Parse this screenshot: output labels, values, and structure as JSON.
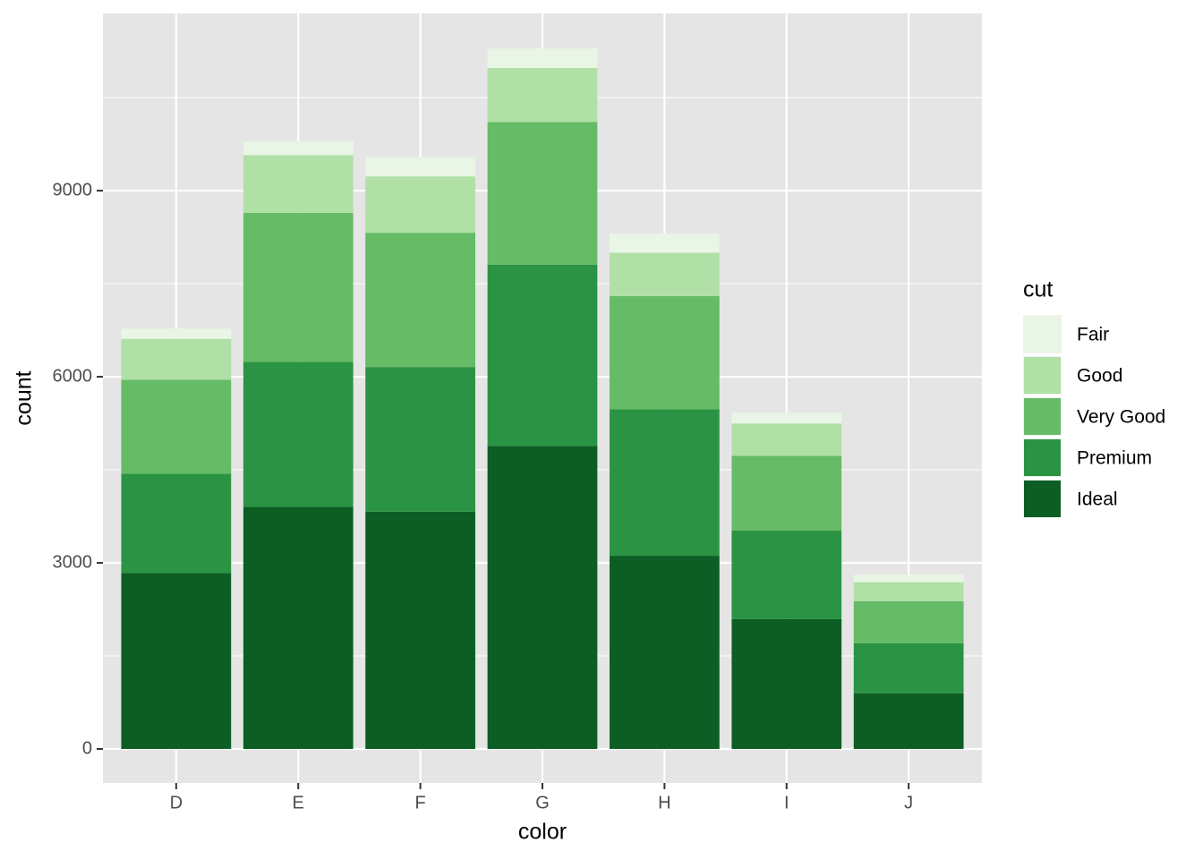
{
  "chart_data": {
    "type": "bar",
    "stacked": true,
    "x_label": "color",
    "y_label": "count",
    "legend_title": "cut",
    "categories": [
      "D",
      "E",
      "F",
      "G",
      "H",
      "I",
      "J"
    ],
    "series": [
      {
        "name": "Fair",
        "color": "#e9f6e5",
        "values": [
          163,
          224,
          312,
          314,
          303,
          175,
          119
        ]
      },
      {
        "name": "Good",
        "color": "#b0e0a6",
        "values": [
          662,
          933,
          909,
          871,
          702,
          522,
          307
        ]
      },
      {
        "name": "Very Good",
        "color": "#66bb66",
        "values": [
          1513,
          2400,
          2164,
          2299,
          1824,
          1204,
          678
        ]
      },
      {
        "name": "Premium",
        "color": "#2b9444",
        "values": [
          1603,
          2337,
          2331,
          2924,
          2360,
          1428,
          808
        ]
      },
      {
        "name": "Ideal",
        "color": "#0c5e25",
        "values": [
          2834,
          3903,
          3826,
          4884,
          3115,
          2093,
          896
        ]
      }
    ],
    "ylim": [
      -548,
      11857
    ],
    "yticks": [
      0,
      3000,
      6000,
      9000
    ],
    "minor_yticks": [
      1500,
      4500,
      7500,
      10500
    ],
    "grid": true,
    "legend": "right"
  }
}
